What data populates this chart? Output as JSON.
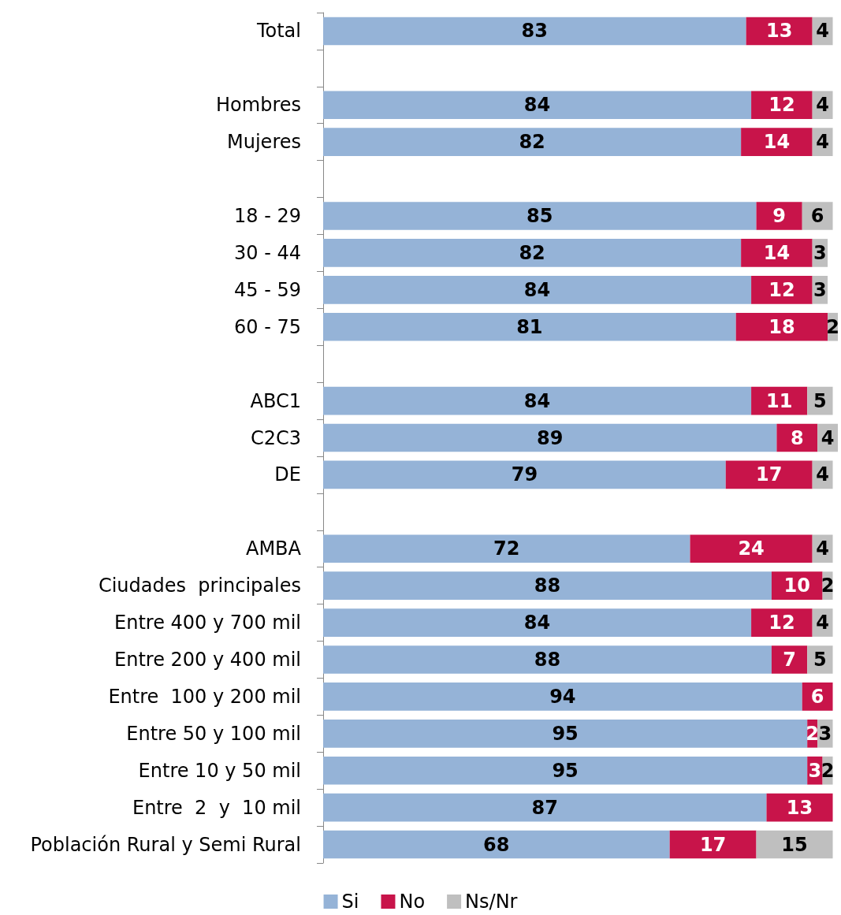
{
  "chart_data": {
    "type": "bar",
    "orientation": "horizontal",
    "stacked": true,
    "data_labels": true,
    "legend": "bottom",
    "categories": [
      "Total",
      null,
      "Hombres",
      "Mujeres",
      null,
      "18 - 29",
      "30 - 44",
      "45 - 59",
      "60 - 75",
      null,
      "ABC1",
      "C2C3",
      "DE",
      null,
      "AMBA",
      "Ciudades  principales",
      "Entre 400 y 700 mil",
      "Entre 200 y 400 mil",
      "Entre  100 y 200 mil",
      "Entre 50 y 100 mil",
      "Entre 10 y 50 mil",
      "Entre  2  y  10 mil",
      "Población Rural y Semi Rural"
    ],
    "series": [
      {
        "name": "Si",
        "color": "#95b3d7",
        "values": [
          83,
          null,
          84,
          82,
          null,
          85,
          82,
          84,
          81,
          null,
          84,
          89,
          79,
          null,
          72,
          88,
          84,
          88,
          94,
          95,
          95,
          87,
          68
        ]
      },
      {
        "name": "No",
        "color": "#c8144a",
        "values": [
          13,
          null,
          12,
          14,
          null,
          9,
          14,
          12,
          18,
          null,
          11,
          8,
          17,
          null,
          24,
          10,
          12,
          7,
          6,
          2,
          3,
          13,
          17
        ]
      },
      {
        "name": "Ns/Nr",
        "color": "#bfbfbf",
        "values": [
          4,
          null,
          4,
          4,
          null,
          6,
          3,
          3,
          2,
          null,
          5,
          4,
          4,
          null,
          4,
          2,
          4,
          5,
          null,
          3,
          2,
          null,
          15
        ]
      }
    ]
  }
}
